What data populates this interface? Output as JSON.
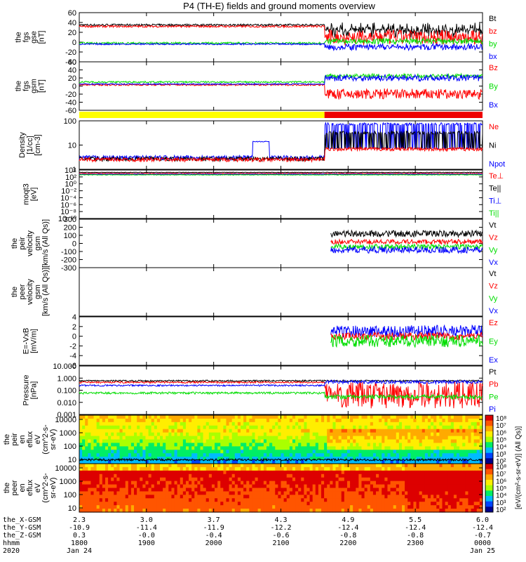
{
  "title": "P4 (TH-E) fields and ground moments overview",
  "colors": {
    "black": "#000000",
    "red": "#ff0000",
    "green": "#00dd00",
    "blue": "#0000ff",
    "yellow": "#ffff00",
    "bar_red": "#ee0000"
  },
  "chart_data": [
    {
      "type": "line",
      "panel": "fgs_gse",
      "ylabel": [
        "the",
        "fgs",
        "gse",
        "[nT]"
      ],
      "ylim": [
        -40,
        60
      ],
      "yticks": [
        "60",
        "40",
        "20",
        "0",
        "-20",
        "-40"
      ],
      "series": [
        {
          "name": "Bt",
          "color": "black"
        },
        {
          "name": "bz",
          "color": "red"
        },
        {
          "name": "by",
          "color": "green"
        },
        {
          "name": "bx",
          "color": "blue"
        }
      ]
    },
    {
      "type": "line",
      "panel": "fgs_gsm",
      "ylabel": [
        "the",
        "fgs",
        "gsm",
        "[nT]"
      ],
      "ylim": [
        -60,
        60
      ],
      "yticks": [
        "60",
        "40",
        "20",
        "0",
        "-20",
        "-40",
        "-60"
      ],
      "series": [
        {
          "name": "Bz",
          "color": "red"
        },
        {
          "name": "By",
          "color": "green"
        },
        {
          "name": "Bx",
          "color": "blue"
        }
      ]
    },
    {
      "type": "bar",
      "panel": "region_bar",
      "segments": [
        {
          "color": "yellow",
          "x": [
            2.3,
            4.55
          ]
        },
        {
          "color": "bar_red",
          "x": [
            4.55,
            6.0
          ]
        }
      ]
    },
    {
      "type": "line",
      "panel": "density",
      "ylabel": [
        "Density",
        "[1/cc]",
        "[cm-3]"
      ],
      "yscale": "log",
      "ylim": [
        0.7,
        200
      ],
      "yticks": [
        "100",
        "10",
        "1"
      ],
      "series": [
        {
          "name": "Ne",
          "color": "red"
        },
        {
          "name": "Ni",
          "color": "black"
        },
        {
          "name": "Npot",
          "color": "blue"
        }
      ]
    },
    {
      "type": "line",
      "panel": "temperature",
      "ylabel": [
        "moqt3",
        "[eV]"
      ],
      "yscale": "log",
      "ylim": [
        1e-10,
        10000.0
      ],
      "yticks": [
        "10⁴",
        "10²",
        "10⁰",
        "10⁻²",
        "10⁻⁴",
        "10⁻⁶",
        "10⁻⁸",
        "10⁻¹⁰"
      ],
      "series": [
        {
          "name": "Te⊥",
          "color": "red"
        },
        {
          "name": "Te||",
          "color": "black"
        },
        {
          "name": "Ti⊥",
          "color": "blue"
        },
        {
          "name": "Ti||",
          "color": "green"
        }
      ]
    },
    {
      "type": "line",
      "panel": "peir_velocity",
      "ylabel": [
        "the",
        "peir",
        "velocity",
        "gsm",
        "[km/s (All Qs)]"
      ],
      "ylim": [
        -300,
        300
      ],
      "yticks": [
        "300",
        "200",
        "100",
        "0",
        "-100",
        "-200",
        "-300"
      ],
      "series": [
        {
          "name": "Vt",
          "color": "black"
        },
        {
          "name": "Vz",
          "color": "red"
        },
        {
          "name": "Vy",
          "color": "green"
        },
        {
          "name": "Vx",
          "color": "blue"
        }
      ]
    },
    {
      "type": "line",
      "panel": "peer_velocity",
      "ylabel": [
        "the",
        "peer",
        "velocity",
        "gsm",
        "[km/s (All Qs)]"
      ],
      "series": [
        {
          "name": "Vt",
          "color": "black"
        },
        {
          "name": "Vz",
          "color": "red"
        },
        {
          "name": "Vy",
          "color": "green"
        },
        {
          "name": "Vx",
          "color": "blue"
        }
      ]
    },
    {
      "type": "line",
      "panel": "efield",
      "ylabel": [
        "E=-VxB",
        "[mV/m]"
      ],
      "ylim": [
        -6,
        4
      ],
      "yticks": [
        "4",
        "2",
        "0",
        "-2",
        "-4",
        "-6"
      ],
      "series": [
        {
          "name": "Ez",
          "color": "red"
        },
        {
          "name": "Ey",
          "color": "green"
        },
        {
          "name": "Ex",
          "color": "blue"
        }
      ]
    },
    {
      "type": "line",
      "panel": "pressure",
      "ylabel": [
        "Pressure",
        "[nPa]"
      ],
      "yscale": "log",
      "ylim": [
        0.001,
        10
      ],
      "yticks": [
        "10.000",
        "1.000",
        "0.100",
        "0.010",
        "0.001"
      ],
      "series": [
        {
          "name": "Pt",
          "color": "black"
        },
        {
          "name": "Pb",
          "color": "red"
        },
        {
          "name": "Pe",
          "color": "green"
        },
        {
          "name": "Pi",
          "color": "blue"
        }
      ]
    },
    {
      "type": "heatmap",
      "panel": "peir_eflux",
      "ylabel": [
        "the",
        "peir",
        "en",
        "eflux",
        "eV",
        "(cm^2-s-",
        "sr-eV)"
      ],
      "yscale": "log",
      "yticks": [
        "10000",
        "1000",
        "100",
        "10"
      ],
      "cbar_ticks": [
        "10⁸",
        "10⁷",
        "10⁶",
        "10⁵",
        "10⁴",
        "10³",
        "10²"
      ]
    },
    {
      "type": "heatmap",
      "panel": "peer_eflux",
      "ylabel": [
        "the",
        "peer",
        "en",
        "eflux",
        "eV",
        "(cm^2-s-",
        "sr-eV)"
      ],
      "yscale": "log",
      "yticks": [
        "10000",
        "1000",
        "100",
        "10"
      ],
      "cbar_ticks": [
        "10⁸",
        "10⁷",
        "10⁶",
        "10⁵",
        "10⁴",
        "10³",
        "10²"
      ]
    }
  ],
  "colorbar_label": "[eV/(cm²-s-sr-eV)] (All Qs)]",
  "ephemeris": {
    "row_labels": [
      "the_X-GSM",
      "the_Y-GSM",
      "the_Z-GSM",
      "hhmm",
      "2020"
    ],
    "columns": [
      [
        "2.3",
        "-10.9",
        "0.3",
        "1800",
        "Jan 24"
      ],
      [
        "3.0",
        "-11.4",
        "-0.0",
        "1900",
        ""
      ],
      [
        "3.7",
        "-11.9",
        "-0.4",
        "2000",
        ""
      ],
      [
        "4.3",
        "-12.2",
        "-0.6",
        "2100",
        ""
      ],
      [
        "4.9",
        "-12.4",
        "-0.8",
        "2200",
        ""
      ],
      [
        "5.5",
        "-12.4",
        "-0.8",
        "2300",
        ""
      ],
      [
        "6.0",
        "-12.4",
        "-0.7",
        "0000",
        "Jan 25"
      ]
    ]
  }
}
